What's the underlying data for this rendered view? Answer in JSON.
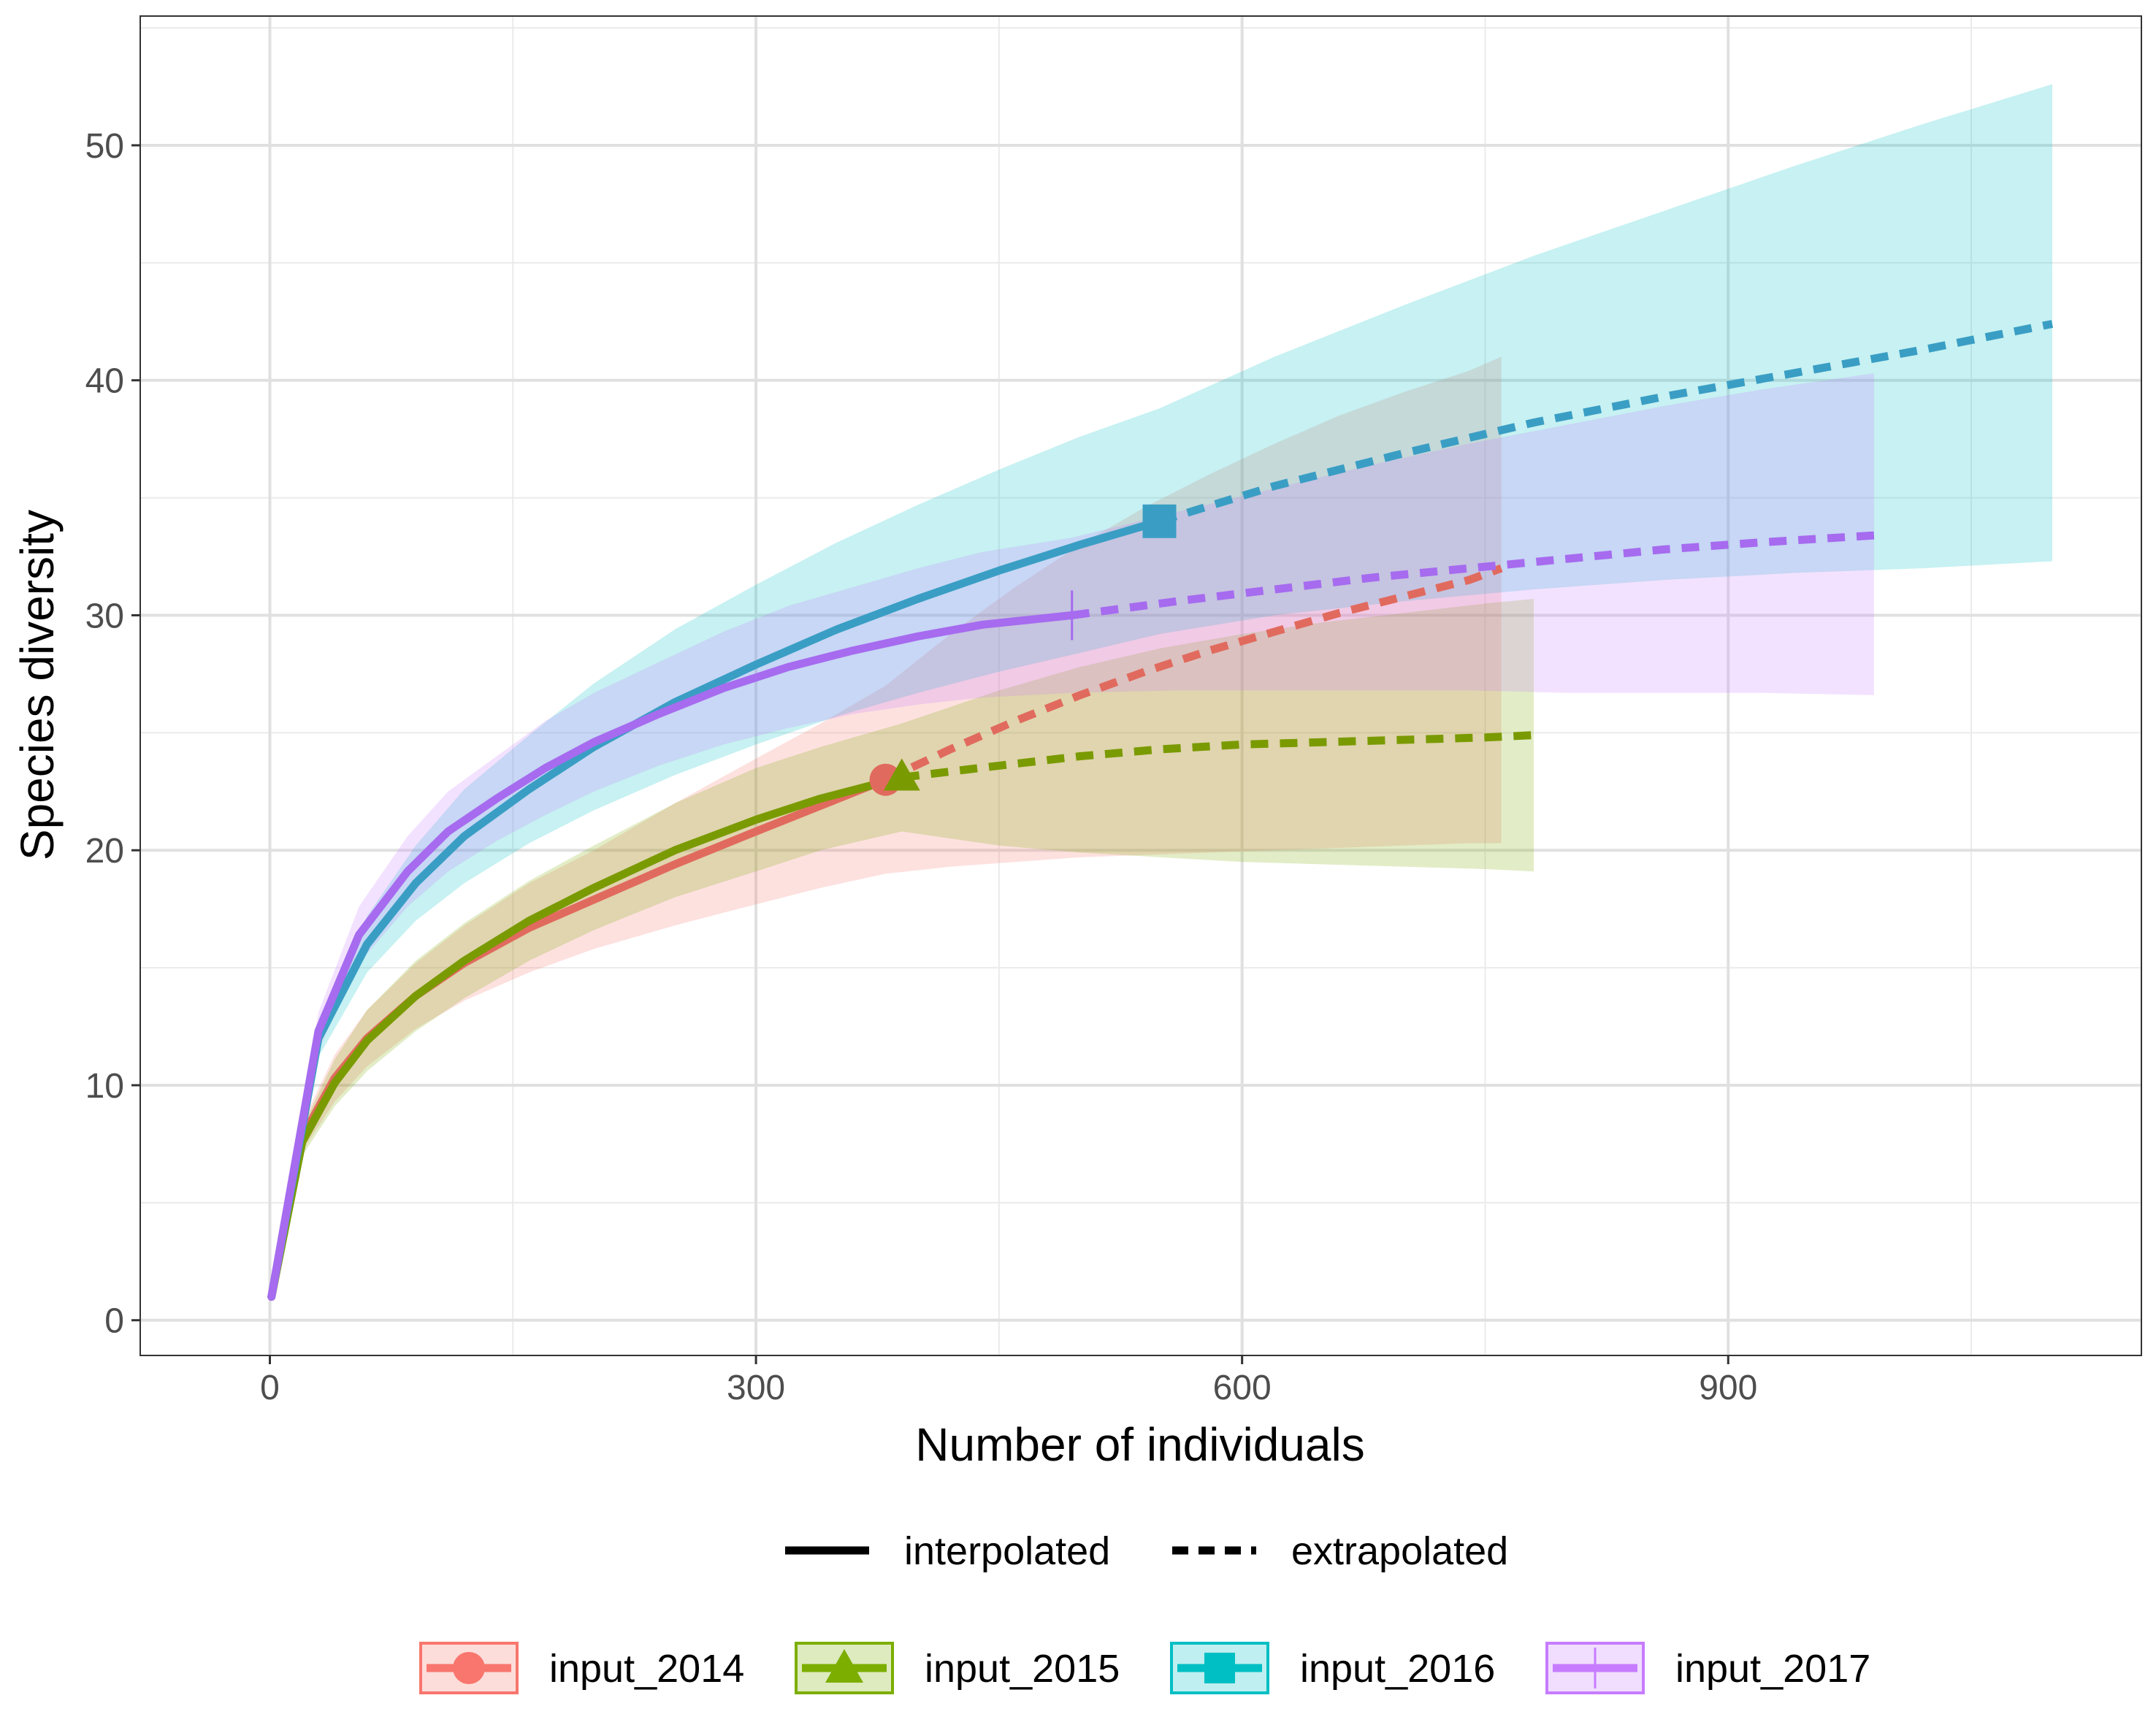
{
  "chart_data": {
    "type": "line",
    "xlabel": "Number of individuals",
    "ylabel": "Species diversity",
    "xlim": [
      -80,
      1155
    ],
    "ylim": [
      -1.5,
      55.5
    ],
    "x_ticks": [
      0,
      300,
      600,
      900
    ],
    "y_ticks": [
      0,
      10,
      20,
      30,
      40,
      50
    ],
    "grid": true,
    "legend_position": "bottom",
    "linetype_legend": [
      {
        "label": "interpolated",
        "style": "solid"
      },
      {
        "label": "extrapolated",
        "style": "dashed"
      }
    ],
    "series": [
      {
        "name": "input_2014",
        "color": "#F8766D",
        "line_color": "#E16A5E",
        "marker": "circle",
        "observed": {
          "x": 380,
          "y": 23
        },
        "interpolated": {
          "x": [
            1,
            20,
            40,
            60,
            90,
            120,
            160,
            200,
            250,
            300,
            340,
            380
          ],
          "y": [
            1,
            7.8,
            10.3,
            12,
            13.8,
            15.2,
            16.7,
            17.9,
            19.4,
            20.8,
            21.9,
            23
          ],
          "lower": [
            1,
            7.2,
            9.3,
            10.8,
            12.4,
            13.6,
            14.8,
            15.8,
            16.8,
            17.7,
            18.4,
            19
          ]
        },
        "extrapolated": {
          "x": [
            380,
            420,
            460,
            500,
            540,
            580,
            620,
            660,
            700,
            740,
            760
          ],
          "y": [
            23,
            24.3,
            25.5,
            26.6,
            27.6,
            28.5,
            29.3,
            30.1,
            30.8,
            31.5,
            32
          ],
          "lower": [
            19,
            19.3,
            19.5,
            19.7,
            19.8,
            19.9,
            20,
            20.1,
            20.2,
            20.3,
            20.3
          ],
          "upper": [
            27,
            29.2,
            31.2,
            33,
            34.6,
            36,
            37.3,
            38.5,
            39.5,
            40.4,
            41
          ]
        },
        "interpolated_upper": [
          1,
          8.4,
          11.3,
          13.2,
          15.2,
          16.8,
          18.6,
          20,
          22,
          23.9,
          25.4,
          27
        ]
      },
      {
        "name": "input_2015",
        "color": "#7CAE00",
        "line_color": "#7A9A01",
        "marker": "triangle",
        "observed": {
          "x": 390,
          "y": 23.1
        },
        "interpolated": {
          "x": [
            1,
            20,
            40,
            60,
            90,
            120,
            160,
            200,
            250,
            300,
            340,
            390
          ],
          "y": [
            1,
            7.6,
            10.1,
            11.9,
            13.8,
            15.3,
            17,
            18.4,
            20,
            21.3,
            22.2,
            23.1
          ],
          "lower": [
            1,
            7,
            9.1,
            10.6,
            12.3,
            13.7,
            15.3,
            16.6,
            18,
            19.1,
            20,
            20.8
          ]
        },
        "extrapolated": {
          "x": [
            390,
            450,
            500,
            550,
            600,
            650,
            700,
            750,
            780
          ],
          "y": [
            23.1,
            23.6,
            24,
            24.3,
            24.5,
            24.6,
            24.7,
            24.8,
            24.9
          ],
          "lower": [
            20.8,
            20.2,
            19.9,
            19.7,
            19.5,
            19.4,
            19.3,
            19.2,
            19.1
          ],
          "upper": [
            25.4,
            26.8,
            27.8,
            28.6,
            29.2,
            29.7,
            30.1,
            30.5,
            30.7
          ]
        },
        "interpolated_upper": [
          1,
          8.2,
          11.1,
          13.2,
          15.3,
          16.9,
          18.7,
          20.2,
          22,
          23.5,
          24.4,
          25.4
        ]
      },
      {
        "name": "input_2016",
        "color": "#00BFC4",
        "line_color": "#3A9EC4",
        "marker": "square",
        "observed": {
          "x": 549,
          "y": 34
        },
        "interpolated": {
          "x": [
            1,
            30,
            60,
            90,
            120,
            160,
            200,
            250,
            300,
            350,
            400,
            450,
            500,
            549
          ],
          "y": [
            1,
            12,
            16,
            18.6,
            20.6,
            22.6,
            24.4,
            26.3,
            27.9,
            29.4,
            30.7,
            31.9,
            33,
            34
          ],
          "lower": [
            1,
            11.2,
            14.8,
            17,
            18.6,
            20.3,
            21.7,
            23.2,
            24.5,
            25.7,
            26.7,
            27.6,
            28.4,
            29.2
          ]
        },
        "extrapolated": {
          "x": [
            549,
            620,
            700,
            780,
            860,
            940,
            1020,
            1100
          ],
          "y": [
            34,
            35.5,
            36.9,
            38.2,
            39.3,
            40.3,
            41.3,
            42.4
          ],
          "lower": [
            29.2,
            30,
            30.6,
            31.1,
            31.5,
            31.8,
            32,
            32.3
          ],
          "upper": [
            38.8,
            41,
            43.2,
            45.3,
            47.2,
            49.1,
            50.9,
            52.6
          ]
        },
        "interpolated_upper": [
          1,
          12.8,
          17.2,
          20.2,
          22.6,
          24.9,
          27.1,
          29.4,
          31.3,
          33.1,
          34.7,
          36.2,
          37.6,
          38.8
        ]
      },
      {
        "name": "input_2017",
        "color": "#C77CFF",
        "line_color": "#A66BEF",
        "marker": "cross",
        "observed": {
          "x": 495,
          "y": 30
        },
        "interpolated": {
          "x": [
            1,
            30,
            55,
            85,
            110,
            140,
            170,
            200,
            240,
            280,
            320,
            360,
            400,
            440,
            495
          ],
          "y": [
            1,
            12.3,
            16.4,
            19.1,
            20.8,
            22.2,
            23.5,
            24.6,
            25.8,
            26.9,
            27.8,
            28.5,
            29.1,
            29.6,
            30
          ],
          "lower": [
            1,
            11.5,
            15.2,
            17.6,
            19.1,
            20.4,
            21.5,
            22.5,
            23.6,
            24.5,
            25.2,
            25.8,
            26.2,
            26.5,
            26.7
          ]
        },
        "extrapolated": {
          "x": [
            495,
            560,
            620,
            680,
            740,
            800,
            860,
            920,
            990
          ],
          "y": [
            30,
            30.6,
            31.1,
            31.6,
            32,
            32.4,
            32.8,
            33.1,
            33.4
          ],
          "lower": [
            26.7,
            26.8,
            26.8,
            26.8,
            26.8,
            26.7,
            26.7,
            26.7,
            26.6
          ],
          "upper": [
            33.3,
            34.4,
            35.4,
            36.4,
            37.3,
            38.1,
            38.9,
            39.6,
            40.3
          ]
        },
        "interpolated_upper": [
          1,
          13.1,
          17.6,
          20.6,
          22.5,
          24,
          25.5,
          26.7,
          28,
          29.3,
          30.4,
          31.2,
          32,
          32.7,
          33.3
        ]
      }
    ]
  }
}
